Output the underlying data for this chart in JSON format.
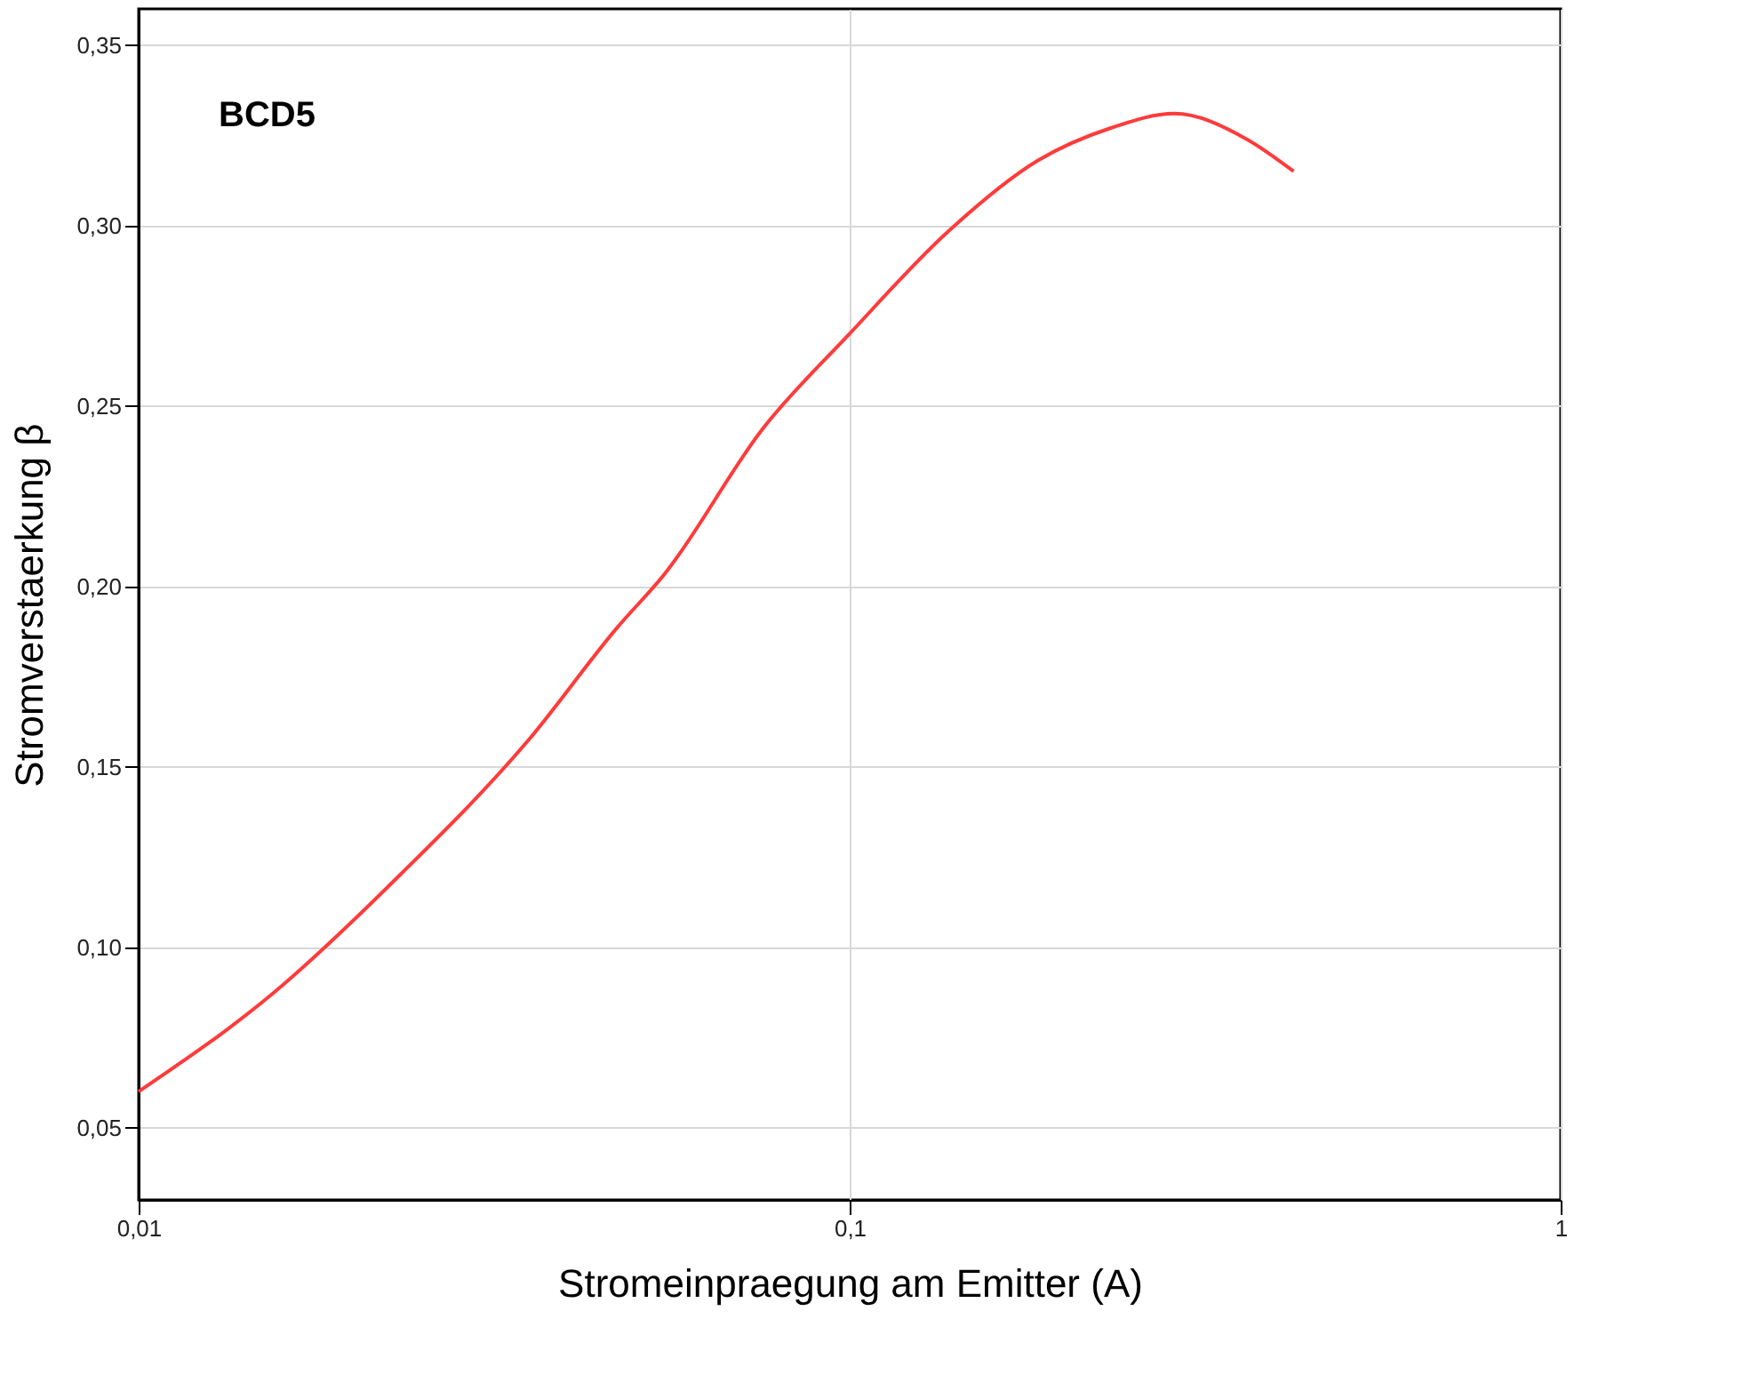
{
  "chart_data": {
    "type": "line",
    "xlabel": "Stromeinpraegung am Emitter (A)",
    "ylabel": "Stromverstaerkung β",
    "annotations": [
      "BCD5"
    ],
    "log": "x",
    "grid": true,
    "marker": "none",
    "line_style": "solid",
    "xlim": [
      0.01,
      1
    ],
    "xticks": [
      {
        "value": 0.01,
        "label": "0,01"
      },
      {
        "value": 0.1,
        "label": "0,1"
      },
      {
        "value": 1,
        "label": "1"
      }
    ],
    "ylim": [
      0.03,
      0.36
    ],
    "yticks": [
      {
        "value": 0.05,
        "label": "0,05"
      },
      {
        "value": 0.1,
        "label": "0,10"
      },
      {
        "value": 0.15,
        "label": "0,15"
      },
      {
        "value": 0.2,
        "label": "0,20"
      },
      {
        "value": 0.25,
        "label": "0,25"
      },
      {
        "value": 0.3,
        "label": "0,30"
      },
      {
        "value": 0.35,
        "label": "0,35"
      }
    ],
    "series": [
      {
        "color": "#ff3b3b",
        "x": [
          0.01,
          0.0154,
          0.0233,
          0.0352,
          0.0473,
          0.0547,
          0.0757,
          0.1,
          0.137,
          0.184,
          0.233,
          0.286,
          0.361,
          0.421
        ],
        "values": [
          0.06,
          0.087,
          0.12,
          0.157,
          0.189,
          0.203,
          0.244,
          0.27,
          0.298,
          0.318,
          0.327,
          0.331,
          0.324,
          0.315
        ]
      }
    ]
  }
}
